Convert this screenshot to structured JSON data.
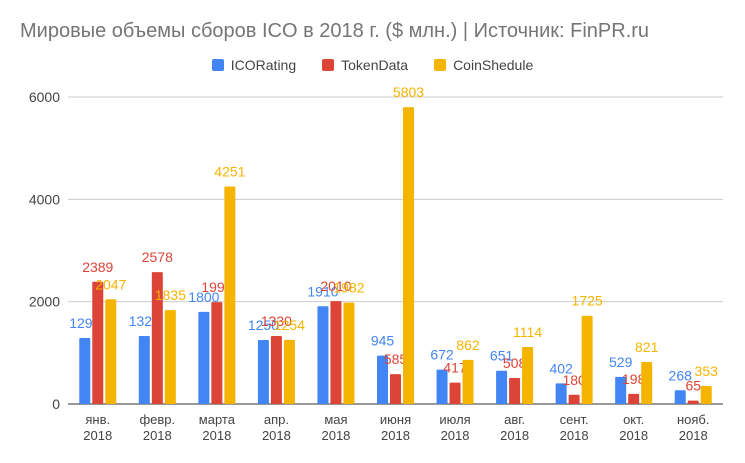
{
  "title": "Мировые объемы сборов ICO в 2018 г. ($ млн.) | Источник: FinPR.ru",
  "colors": {
    "ICORating": "#4285f4",
    "TokenData": "#db4437",
    "CoinShedule": "#f4b400"
  },
  "chart_data": {
    "type": "bar",
    "title": "Мировые объемы сборов ICO в 2018 г. ($ млн.) | Источник: FinPR.ru",
    "categories": [
      [
        "янв.",
        "2018"
      ],
      [
        "февр.",
        "2018"
      ],
      [
        "марта",
        "2018"
      ],
      [
        "апр.",
        "2018"
      ],
      [
        "мая",
        "2018"
      ],
      [
        "июня",
        "2018"
      ],
      [
        "июля",
        "2018"
      ],
      [
        "авг.",
        "2018"
      ],
      [
        "сент.",
        "2018"
      ],
      [
        "окт.",
        "2018"
      ],
      [
        "нояб.",
        "2018"
      ]
    ],
    "series": [
      {
        "name": "ICORating",
        "color": "#4285f4",
        "values": [
          1290,
          1329,
          1800,
          1250,
          1910,
          945,
          672,
          651,
          402,
          529,
          268
        ]
      },
      {
        "name": "TokenData",
        "color": "#db4437",
        "values": [
          2389,
          2578,
          1990,
          1330,
          2010,
          585,
          417,
          508,
          180,
          198,
          65
        ]
      },
      {
        "name": "CoinShedule",
        "color": "#f4b400",
        "values": [
          2047,
          1835,
          4251,
          1254,
          1982,
          5803,
          862,
          1114,
          1725,
          821,
          353
        ]
      }
    ],
    "yticks": [
      0,
      2000,
      4000,
      6000
    ],
    "ylim": [
      0,
      6000
    ],
    "legend_position": "top",
    "grid": true,
    "xlabel": "",
    "ylabel": ""
  }
}
